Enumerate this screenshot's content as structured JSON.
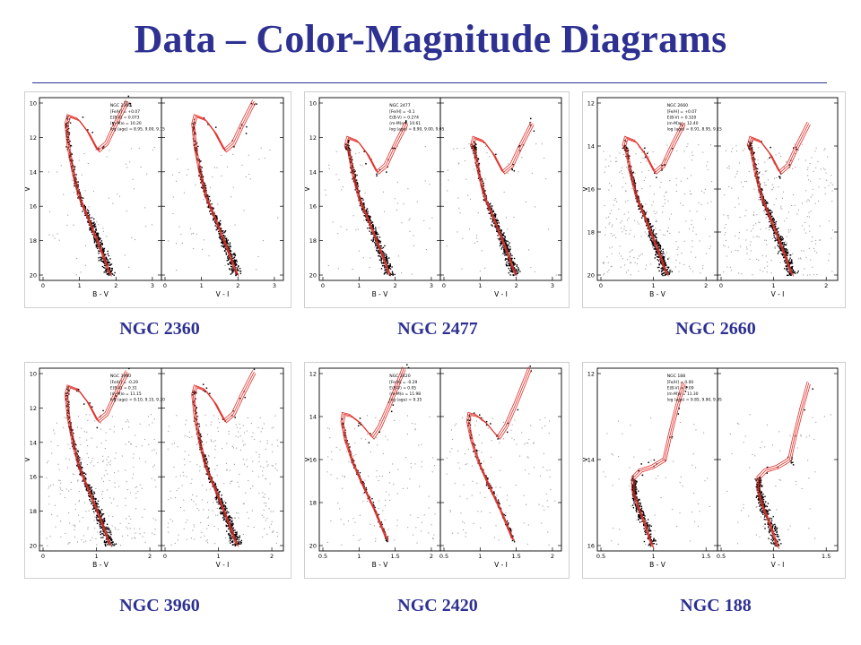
{
  "slide": {
    "title": "Data – Color-Magnitude Diagrams"
  },
  "colors": {
    "title": "#2e3192",
    "isochrone": "#e0302a",
    "star": "#000000",
    "field": "#9a9a9a"
  },
  "panels": [
    {
      "caption": "NGC 2360",
      "inset": {
        "name": "NGC 2360",
        "lines": [
          "[Fe/H] = +0.07",
          "E(B-V) = 0.073",
          "(m-M)o = 10.20",
          "log (age) = 8.95, 9.00, 9.15"
        ]
      },
      "ylabel": "V",
      "yticks": [
        "10",
        "12",
        "14",
        "16",
        "18",
        "20"
      ],
      "left": {
        "xlabel": "B - V",
        "xticks": [
          "0",
          "1",
          "2",
          "3"
        ]
      },
      "right": {
        "xlabel": "V - I",
        "xticks": [
          "0",
          "1",
          "2",
          "3"
        ]
      }
    },
    {
      "caption": "NGC 2477",
      "inset": {
        "name": "NGC 2477",
        "lines": [
          "[Fe/H] = -0.1",
          "E(B-V) = 0.274",
          "(m-M)o = 10.61",
          "log (age) = 8.90, 9.00, 9.05"
        ]
      },
      "ylabel": "V",
      "yticks": [
        "10",
        "12",
        "14",
        "16",
        "18",
        "20"
      ],
      "left": {
        "xlabel": "B - V",
        "xticks": [
          "0",
          "1",
          "2",
          "3"
        ]
      },
      "right": {
        "xlabel": "V - I",
        "xticks": [
          "0",
          "1",
          "2",
          "3"
        ]
      }
    },
    {
      "caption": "NGC 2660",
      "inset": {
        "name": "NGC 2660",
        "lines": [
          "[Fe/H] = +0.07",
          "E(B-V) = 0.320",
          "(m-M)o = 12.40",
          "log (age) = 8.91, 8.95, 9.15"
        ]
      },
      "ylabel": "V",
      "yticks": [
        "12",
        "14",
        "16",
        "18",
        "20"
      ],
      "left": {
        "xlabel": "B - V",
        "xticks": [
          "0",
          "1",
          "2"
        ]
      },
      "right": {
        "xlabel": "V - I",
        "xticks": [
          "0",
          "1",
          "2"
        ]
      }
    },
    {
      "caption": "NGC 3960",
      "inset": {
        "name": "NGC 3960",
        "lines": [
          "[Fe/H] = -0.29",
          "E(B-V) = 0.31",
          "(m-M)o = 11.15",
          "log (age) = 9.10, 9.15, 9.20"
        ]
      },
      "ylabel": "V",
      "yticks": [
        "10",
        "12",
        "14",
        "16",
        "18",
        "20"
      ],
      "left": {
        "xlabel": "B - V",
        "xticks": [
          "0",
          "1",
          "2"
        ]
      },
      "right": {
        "xlabel": "V - I",
        "xticks": [
          "0",
          "1",
          "2"
        ]
      }
    },
    {
      "caption": "NGC 2420",
      "inset": {
        "name": "NGC 2420",
        "lines": [
          "[Fe/H] = -0.29",
          "E(B-V) = 0.05",
          "(m-M)o = 11.98",
          "log (age) = 9.35"
        ]
      },
      "ylabel": "V",
      "yticks": [
        "12",
        "14",
        "16",
        "18",
        "20"
      ],
      "left": {
        "xlabel": "B - V",
        "xticks": [
          "0.5",
          "1",
          "1.5",
          "2"
        ]
      },
      "right": {
        "xlabel": "V - I",
        "xticks": [
          "0.5",
          "1",
          "1.5",
          "2"
        ]
      }
    },
    {
      "caption": "NGC 188",
      "inset": {
        "name": "NGC 188",
        "lines": [
          "[Fe/H] = 0.00",
          "E(B-V) = 0.09",
          "(m-M)o = 11.30",
          "log (age) = 9.85, 9.90, 9.95"
        ]
      },
      "ylabel": "V",
      "yticks": [
        "12",
        "14",
        "16"
      ],
      "left": {
        "xlabel": "B - V",
        "xticks": [
          "0.5",
          "1",
          "1.5"
        ]
      },
      "right": {
        "xlabel": "V - I",
        "xticks": [
          "0.5",
          "1",
          "1.5"
        ]
      }
    }
  ]
}
